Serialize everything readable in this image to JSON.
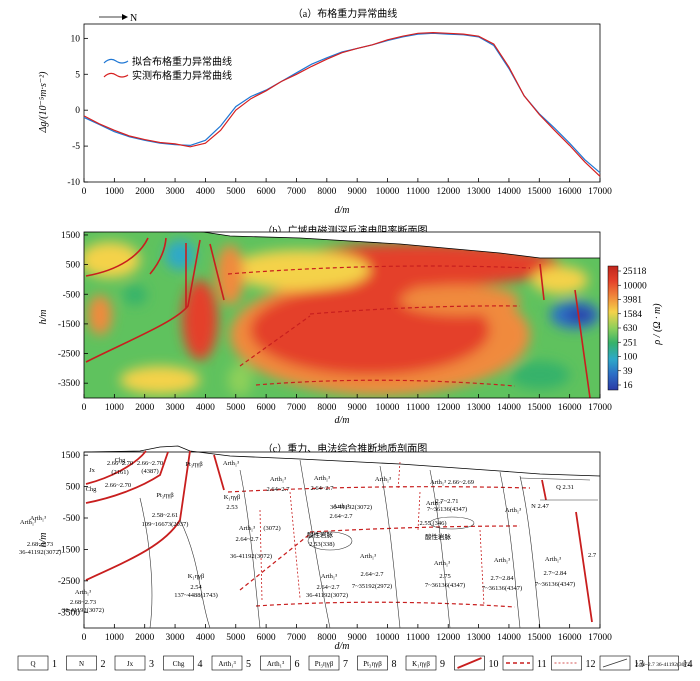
{
  "panel_a": {
    "title": "（a）布格重力异常曲线",
    "north": "N",
    "ylabel": "Δg/(10⁻⁵m·s⁻²)",
    "xlabel": "d/m"
  },
  "panel_b": {
    "title": "（b）广域电磁测深反演电阻率断面图",
    "ylabel": "h/m",
    "xlabel": "d/m",
    "colorbar_label": "ρ / (Ω · m)",
    "colorbar_ticks": [
      "25118",
      "10000",
      "3981",
      "1584",
      "630",
      "251",
      "100",
      "39",
      "16"
    ]
  },
  "panel_c": {
    "title": "（c）重力、电法综合推断地质剖面图",
    "ylabel": "h/m",
    "xlabel": "d/m",
    "labels": [
      {
        "t": "Jx",
        "x": 92,
        "y": 472
      },
      {
        "t": "2.66~2.70",
        "x": 120,
        "y": 465
      },
      {
        "t": "(2161)",
        "x": 120,
        "y": 474
      },
      {
        "t": "Chg",
        "x": 120,
        "y": 462
      },
      {
        "t": "2.66~2.70",
        "x": 150,
        "y": 465
      },
      {
        "t": "(4387)",
        "x": 150,
        "y": 473
      },
      {
        "t": "Chg",
        "x": 91,
        "y": 491
      },
      {
        "t": "2.66~2.70",
        "x": 118,
        "y": 487
      },
      {
        "t": "Pt₃ηγβ",
        "x": 165,
        "y": 497
      },
      {
        "t": "2.58~2.61",
        "x": 165,
        "y": 517
      },
      {
        "t": "109~16673(2037)",
        "x": 165,
        "y": 526
      },
      {
        "t": "Pt₃ηγβ",
        "x": 194,
        "y": 466
      },
      {
        "t": "Arth₁³",
        "x": 231,
        "y": 465
      },
      {
        "t": "2.53",
        "x": 232,
        "y": 509
      },
      {
        "t": "K₁ηγβ",
        "x": 232,
        "y": 499
      },
      {
        "t": "Arth₁³",
        "x": 278,
        "y": 481
      },
      {
        "t": "2.64~2.7",
        "x": 278,
        "y": 491
      },
      {
        "t": "Arth₁³",
        "x": 322,
        "y": 480
      },
      {
        "t": "2.64~2.7",
        "x": 322,
        "y": 490
      },
      {
        "t": "Arth₁³",
        "x": 383,
        "y": 481
      },
      {
        "t": "Arth₁³ 2.66~2.69",
        "x": 452,
        "y": 484
      },
      {
        "t": "Q   2.31",
        "x": 565,
        "y": 489
      },
      {
        "t": "Arth₁³",
        "x": 341,
        "y": 508
      },
      {
        "t": "36-41192(3072)",
        "x": 351,
        "y": 509
      },
      {
        "t": "2.64~2.7",
        "x": 341,
        "y": 518
      },
      {
        "t": "Arth₁³",
        "x": 434,
        "y": 505
      },
      {
        "t": "2.7~2.71",
        "x": 447,
        "y": 503
      },
      {
        "t": "7~36136(4347)",
        "x": 447,
        "y": 511
      },
      {
        "t": "N   2.47",
        "x": 540,
        "y": 508
      },
      {
        "t": "Arth₁³",
        "x": 513,
        "y": 512
      },
      {
        "t": "2.55 (346)",
        "x": 433,
        "y": 525
      },
      {
        "t": "酸性岩脉",
        "x": 438,
        "y": 539
      },
      {
        "t": "酸性岩脉",
        "x": 320,
        "y": 537
      },
      {
        "t": "2.53(338)",
        "x": 322,
        "y": 546
      },
      {
        "t": "Arth₁³",
        "x": 247,
        "y": 530
      },
      {
        "t": "(3072)",
        "x": 272,
        "y": 530
      },
      {
        "t": "2.64~2.7",
        "x": 247,
        "y": 541
      },
      {
        "t": "36-41192(3072)",
        "x": 251,
        "y": 558
      },
      {
        "t": "Arth₁³",
        "x": 38,
        "y": 520
      },
      {
        "t": "Arth₁³",
        "x": 28,
        "y": 524
      },
      {
        "t": "2.68~2.73",
        "x": 40,
        "y": 546
      },
      {
        "t": "36-41192(3072)",
        "x": 40,
        "y": 554
      },
      {
        "t": "Arth₁³",
        "x": 368,
        "y": 558
      },
      {
        "t": "2.64~2.7",
        "x": 372,
        "y": 576
      },
      {
        "t": "7~35192(2972)",
        "x": 372,
        "y": 588
      },
      {
        "t": "Arth₁³",
        "x": 442,
        "y": 565
      },
      {
        "t": "2.75",
        "x": 445,
        "y": 578
      },
      {
        "t": "7~36136(4347)",
        "x": 445,
        "y": 587
      },
      {
        "t": "Arth₁³",
        "x": 502,
        "y": 562
      },
      {
        "t": "2.7~2.84",
        "x": 502,
        "y": 580
      },
      {
        "t": "7~36136(4347)",
        "x": 502,
        "y": 590
      },
      {
        "t": "Arth₁³",
        "x": 553,
        "y": 561
      },
      {
        "t": "2.7~2.84",
        "x": 555,
        "y": 575
      },
      {
        "t": "7~36136(4347)",
        "x": 555,
        "y": 586
      },
      {
        "t": "2.7",
        "x": 592,
        "y": 557
      },
      {
        "t": "Arth₁³",
        "x": 329,
        "y": 578
      },
      {
        "t": "2.64~2.7",
        "x": 328,
        "y": 589
      },
      {
        "t": "36-41192(3072)",
        "x": 327,
        "y": 597
      },
      {
        "t": "K₁ηγβ",
        "x": 196,
        "y": 578
      },
      {
        "t": "2.54",
        "x": 196,
        "y": 589
      },
      {
        "t": "137~4488(1743)",
        "x": 196,
        "y": 597
      },
      {
        "t": "Arth₁³",
        "x": 83,
        "y": 594
      },
      {
        "t": "2.68~2.73",
        "x": 83,
        "y": 604
      },
      {
        "t": "36-41192(3072)",
        "x": 83,
        "y": 612
      }
    ]
  },
  "legend": [
    {
      "sym": "Q",
      "num": "1"
    },
    {
      "sym": "N",
      "num": "2"
    },
    {
      "sym": "Jx",
      "num": "3"
    },
    {
      "sym": "Chg",
      "num": "4"
    },
    {
      "sym": "Arth₁³",
      "num": "5"
    },
    {
      "sym": "Arth₁³",
      "num": "6"
    },
    {
      "sym": "Pt₃ηγβ",
      "num": "7"
    },
    {
      "sym": "Pt₃ηγβ",
      "num": "8"
    },
    {
      "sym": "K₁ηγβ",
      "num": "9"
    },
    {
      "sym": "",
      "num": "10"
    },
    {
      "sym": "",
      "num": "11"
    },
    {
      "sym": "",
      "num": "12"
    },
    {
      "sym": "",
      "num": "13"
    },
    {
      "sym": "2.64~2.7 36-41192(3072)",
      "num": "14"
    }
  ],
  "chart_data": [
    {
      "type": "line",
      "title": "（a）布格重力异常曲线",
      "xlabel": "d/m",
      "ylabel": "Δg/(10⁻⁵m·s⁻²)",
      "xlim": [
        0,
        17000
      ],
      "ylim": [
        -10,
        12
      ],
      "x_ticks": [
        0,
        1000,
        2000,
        3000,
        4000,
        5000,
        6000,
        7000,
        8000,
        9000,
        10000,
        11000,
        12000,
        13000,
        14000,
        15000,
        16000,
        17000
      ],
      "y_ticks": [
        -10,
        -5,
        0,
        5,
        10
      ],
      "legend_position": "upper-left",
      "series": [
        {
          "name": "拟合布格重力异常曲线",
          "color": "#1f77d4",
          "x": [
            0,
            500,
            1000,
            1500,
            2000,
            2500,
            3000,
            3500,
            4000,
            4500,
            5000,
            5500,
            6000,
            6500,
            7000,
            7500,
            8000,
            8500,
            9000,
            9500,
            10000,
            10500,
            11000,
            11500,
            12000,
            12500,
            13000,
            13500,
            14000,
            14500,
            15000,
            15500,
            16000,
            16500,
            17000
          ],
          "y": [
            -1,
            -2,
            -3,
            -3.7,
            -4.2,
            -4.6,
            -4.8,
            -4.9,
            -4.2,
            -2.2,
            0.5,
            1.9,
            2.8,
            4,
            5.2,
            6.4,
            7.3,
            8.1,
            8.6,
            9.1,
            9.7,
            10.2,
            10.6,
            10.7,
            10.6,
            10.5,
            10.2,
            9,
            5.8,
            2,
            -0.5,
            -2.5,
            -4.6,
            -6.9,
            -8.7
          ]
        },
        {
          "name": "实测布格重力异常曲线",
          "color": "#d62020",
          "x": [
            0,
            500,
            1000,
            1500,
            2000,
            2500,
            3000,
            3500,
            4000,
            4500,
            5000,
            5500,
            6000,
            6500,
            7000,
            7500,
            8000,
            8500,
            9000,
            9500,
            10000,
            10500,
            11000,
            11500,
            12000,
            12500,
            13000,
            13500,
            14000,
            14500,
            15000,
            15500,
            16000,
            16500,
            17000
          ],
          "y": [
            -0.8,
            -1.9,
            -2.8,
            -3.6,
            -4.1,
            -4.5,
            -4.7,
            -5.1,
            -4.6,
            -2.8,
            0,
            1.6,
            2.7,
            4,
            5,
            6.1,
            7.1,
            8,
            8.6,
            9.1,
            9.8,
            10.3,
            10.7,
            10.8,
            10.7,
            10.6,
            10.3,
            9.2,
            6,
            2,
            -0.6,
            -2.8,
            -4.9,
            -7.2,
            -9.2
          ]
        }
      ]
    },
    {
      "type": "heatmap",
      "title": "（b）广域电磁测深反演电阻率断面图",
      "xlabel": "d/m",
      "ylabel": "h/m",
      "xlim": [
        0,
        17000
      ],
      "ylim": [
        -4000,
        1600
      ],
      "x_ticks": [
        0,
        1000,
        2000,
        3000,
        4000,
        5000,
        6000,
        7000,
        8000,
        9000,
        10000,
        11000,
        12000,
        13000,
        14000,
        15000,
        16000,
        17000
      ],
      "y_ticks": [
        1500,
        500,
        -500,
        -1500,
        -2500,
        -3500
      ],
      "colorbar_ticks": [
        25118,
        10000,
        3981,
        1584,
        630,
        251,
        100,
        39,
        16
      ],
      "colorbar_label": "ρ / (Ω · m)"
    },
    {
      "type": "other",
      "title": "（c）重力、电法综合推断地质剖面图",
      "xlabel": "d/m",
      "ylabel": "h/m",
      "xlim": [
        0,
        17000
      ],
      "ylim": [
        -4000,
        1600
      ],
      "x_ticks": [
        0,
        1000,
        2000,
        3000,
        4000,
        5000,
        6000,
        7000,
        8000,
        9000,
        10000,
        11000,
        12000,
        13000,
        14000,
        15000,
        16000,
        17000
      ],
      "y_ticks": [
        1500,
        500,
        -500,
        -1500,
        -2500,
        -3500
      ]
    }
  ]
}
